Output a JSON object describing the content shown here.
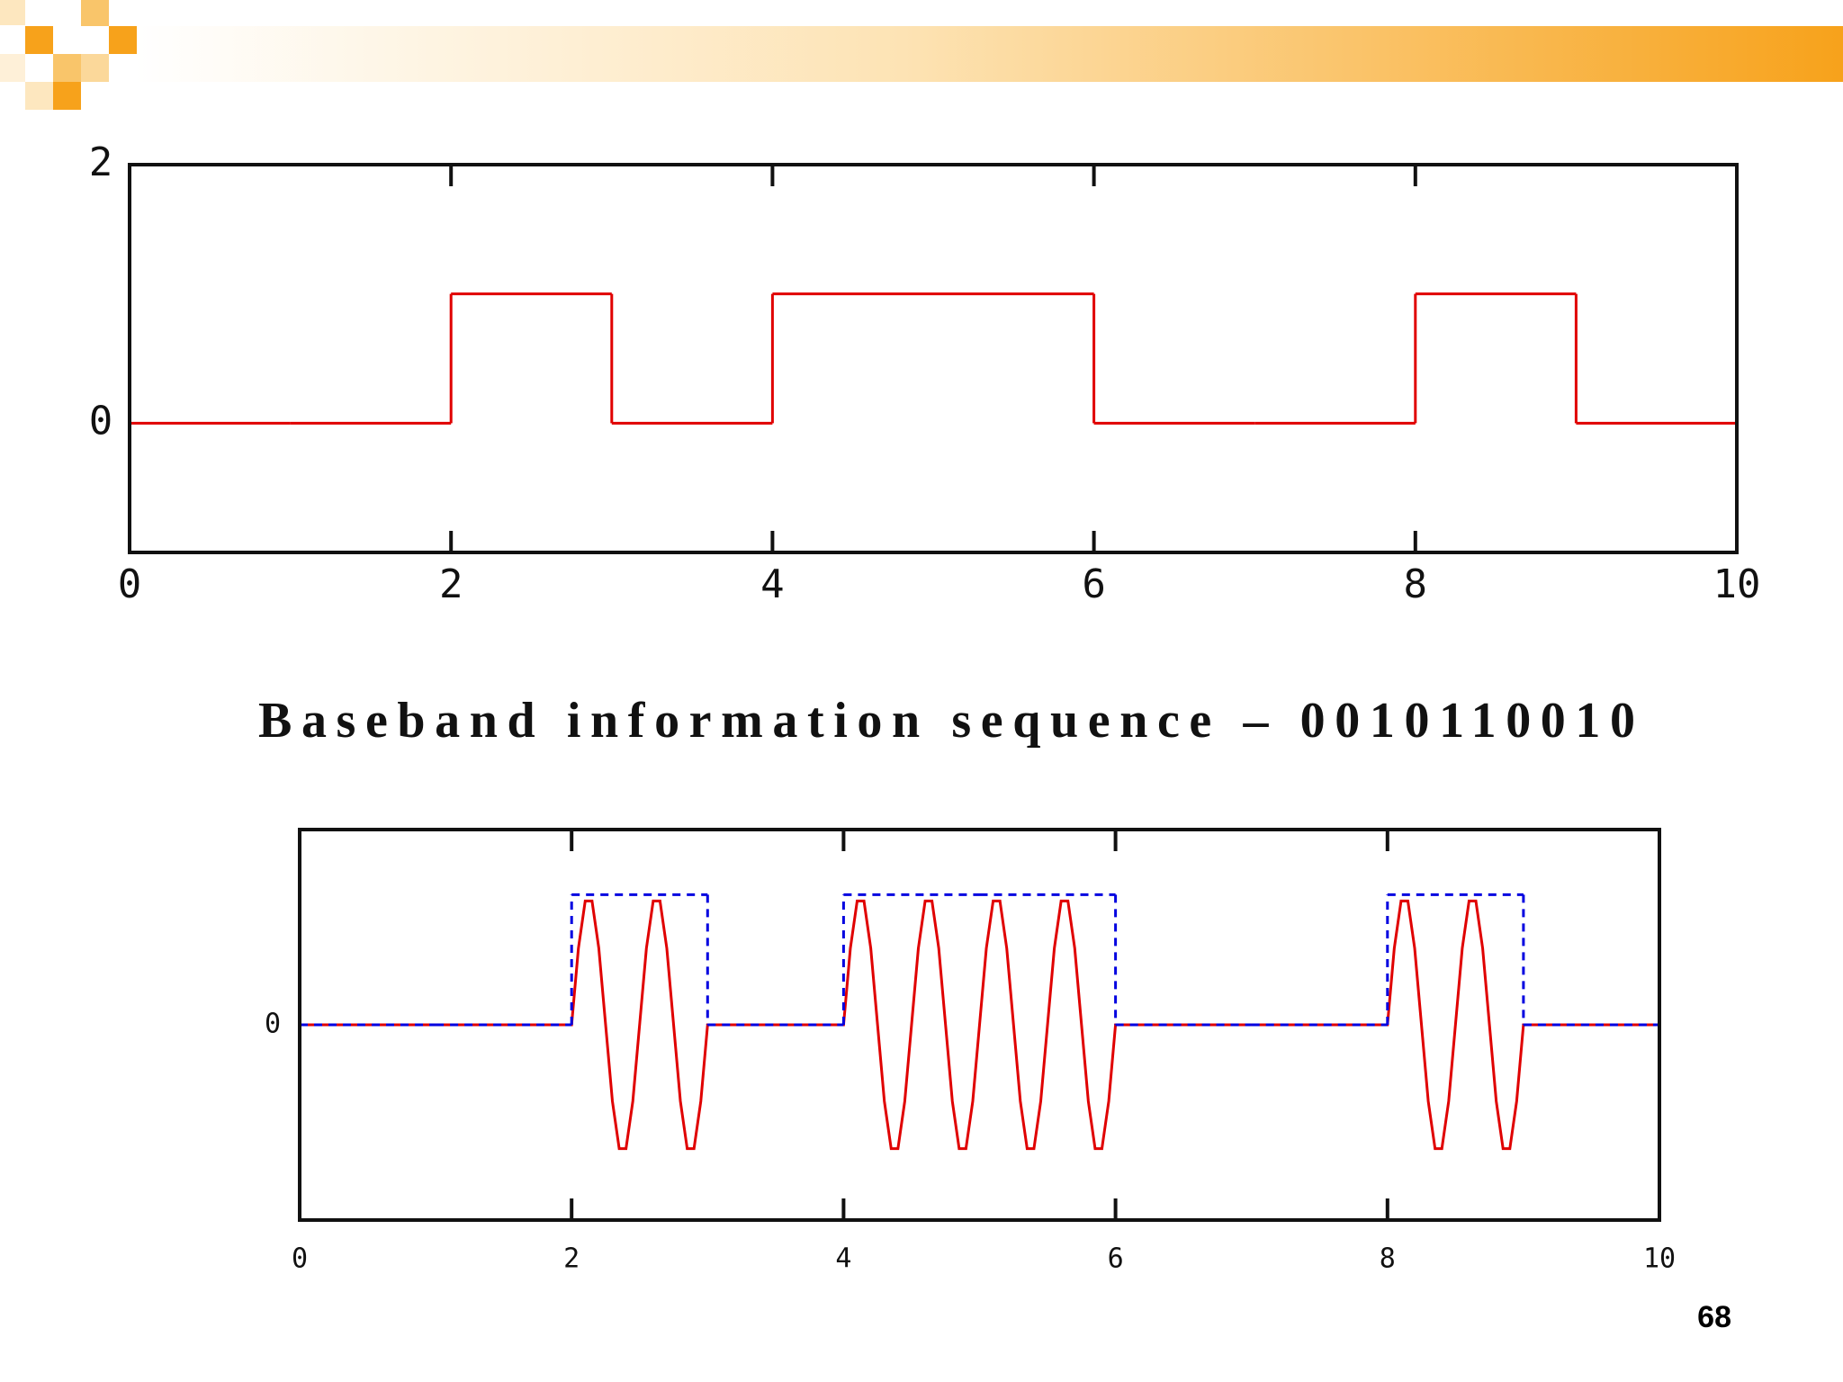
{
  "chart_data": [
    {
      "type": "step",
      "color": "#e00000",
      "x": [
        0,
        1,
        2,
        3,
        4,
        5,
        6,
        7,
        8,
        9
      ],
      "values": [
        0,
        0,
        1,
        0,
        1,
        1,
        0,
        0,
        1,
        0
      ],
      "xlim": [
        0,
        10
      ],
      "ylim": [
        -1,
        2
      ],
      "xticks": [
        0,
        2,
        4,
        6,
        8,
        10
      ],
      "yticks": [
        0,
        2
      ]
    },
    {
      "type": "line",
      "xlim": [
        0,
        10
      ],
      "ylim": [
        -1.5,
        1.5
      ],
      "xticks": [
        0,
        2,
        4,
        6,
        8,
        10
      ],
      "yticks": [
        0
      ],
      "series": [
        {
          "type": "line",
          "color": "#e00000",
          "x": [
            0,
            2,
            2.05,
            2.1,
            2.15,
            2.2,
            2.25,
            2.3,
            2.35,
            2.4,
            2.45,
            2.5,
            2.55,
            2.6,
            2.65,
            2.7,
            2.75,
            2.8,
            2.85,
            2.9,
            2.95,
            3,
            4,
            4.05,
            4.1,
            4.15,
            4.2,
            4.25,
            4.3,
            4.35,
            4.4,
            4.45,
            4.5,
            4.55,
            4.6,
            4.65,
            4.7,
            4.75,
            4.8,
            4.85,
            4.9,
            4.95,
            5,
            5.05,
            5.1,
            5.15,
            5.2,
            5.25,
            5.3,
            5.35,
            5.4,
            5.45,
            5.5,
            5.55,
            5.6,
            5.65,
            5.7,
            5.75,
            5.8,
            5.85,
            5.9,
            5.95,
            6,
            8,
            8.05,
            8.1,
            8.15,
            8.2,
            8.25,
            8.3,
            8.35,
            8.4,
            8.45,
            8.5,
            8.55,
            8.6,
            8.65,
            8.7,
            8.75,
            8.8,
            8.85,
            8.9,
            8.95,
            9,
            10
          ],
          "values": [
            0,
            0,
            0.588,
            0.951,
            0.951,
            0.588,
            0,
            -0.588,
            -0.951,
            -0.951,
            -0.588,
            0,
            0.588,
            0.951,
            0.951,
            0.588,
            0,
            -0.588,
            -0.951,
            -0.951,
            -0.588,
            0,
            0,
            0.588,
            0.951,
            0.951,
            0.588,
            0,
            -0.588,
            -0.951,
            -0.951,
            -0.588,
            0,
            0.588,
            0.951,
            0.951,
            0.588,
            0,
            -0.588,
            -0.951,
            -0.951,
            -0.588,
            0,
            0.588,
            0.951,
            0.951,
            0.588,
            0,
            -0.588,
            -0.951,
            -0.951,
            -0.588,
            0,
            0.588,
            0.951,
            0.951,
            0.588,
            0,
            -0.588,
            -0.951,
            -0.951,
            -0.588,
            0,
            0,
            0.588,
            0.951,
            0.951,
            0.588,
            0,
            -0.588,
            -0.951,
            -0.951,
            -0.588,
            0,
            0.588,
            0.951,
            0.951,
            0.588,
            0,
            -0.588,
            -0.951,
            -0.951,
            -0.588,
            0,
            0
          ]
        },
        {
          "type": "step",
          "color": "#0000e0",
          "style": "dashed",
          "x": [
            0,
            1,
            2,
            3,
            4,
            5,
            6,
            7,
            8,
            9
          ],
          "values": [
            0,
            0,
            1,
            0,
            1,
            1,
            0,
            0,
            1,
            0
          ]
        }
      ]
    }
  ],
  "caption": "Baseband information sequence – 0010110010",
  "page_number": "68"
}
